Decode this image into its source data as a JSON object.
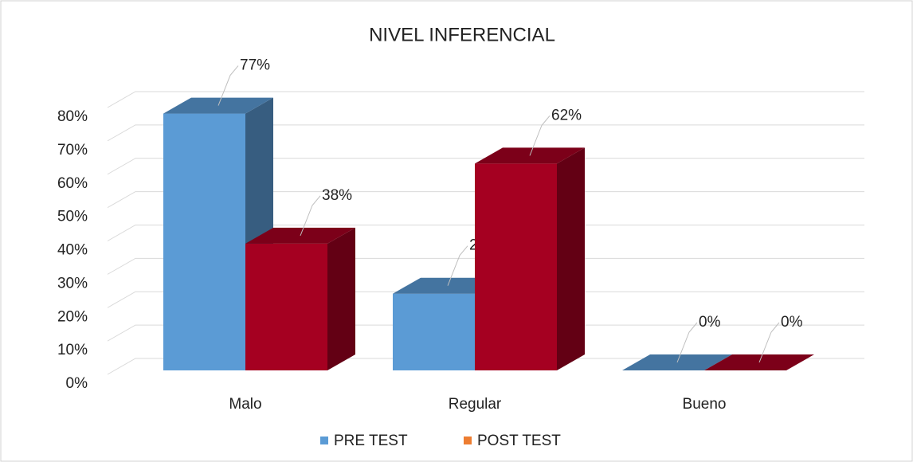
{
  "chart_data": {
    "type": "bar3d",
    "title": "NIVEL INFERENCIAL",
    "categories": [
      "Malo",
      "Regular",
      "Bueno"
    ],
    "series": [
      {
        "name": "PRE TEST",
        "color": "#5b9bd5",
        "legend_color": "#5b9bd5",
        "values": [
          77,
          23,
          0
        ],
        "value_labels": [
          "77%",
          "23%",
          "0%"
        ]
      },
      {
        "name": "POST TEST",
        "color": "#a50021",
        "legend_color": "#ed7d31",
        "values": [
          38,
          62,
          0
        ],
        "value_labels": [
          "38%",
          "62%",
          "0%"
        ]
      }
    ],
    "ylim": [
      0,
      80
    ],
    "yticks": [
      {
        "value": 0,
        "label": "0%"
      },
      {
        "value": 10,
        "label": "10%"
      },
      {
        "value": 20,
        "label": "20%"
      },
      {
        "value": 30,
        "label": "30%"
      },
      {
        "value": 40,
        "label": "40%"
      },
      {
        "value": 50,
        "label": "50%"
      },
      {
        "value": 60,
        "label": "60%"
      },
      {
        "value": 70,
        "label": "70%"
      },
      {
        "value": 80,
        "label": "80%"
      }
    ],
    "grid": true,
    "legend": "bottom"
  }
}
